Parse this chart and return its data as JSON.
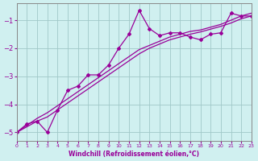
{
  "xlabel": "Windchill (Refroidissement éolien,°C)",
  "background_color": "#d0f0f0",
  "grid_color": "#a0c8c8",
  "line_color": "#990099",
  "x_ticks": [
    0,
    1,
    2,
    3,
    4,
    5,
    6,
    7,
    8,
    9,
    10,
    11,
    12,
    13,
    14,
    15,
    16,
    17,
    18,
    19,
    20,
    21,
    22,
    23
  ],
  "y_ticks": [
    -5,
    -4,
    -3,
    -2,
    -1
  ],
  "xlim": [
    0,
    23
  ],
  "ylim": [
    -5.3,
    -0.4
  ],
  "main_x": [
    0,
    1,
    2,
    3,
    4,
    5,
    6,
    7,
    8,
    9,
    10,
    11,
    12,
    13,
    14,
    15,
    16,
    17,
    18,
    19,
    20,
    21,
    22,
    23
  ],
  "main_y": [
    -5.0,
    -4.7,
    -4.6,
    -5.0,
    -4.2,
    -3.5,
    -3.35,
    -2.95,
    -2.95,
    -2.6,
    -2.0,
    -1.5,
    -0.65,
    -1.3,
    -1.55,
    -1.45,
    -1.45,
    -1.6,
    -1.7,
    -1.5,
    -1.45,
    -0.75,
    -0.85,
    -0.85
  ],
  "line2_x": [
    0,
    1,
    2,
    3,
    4,
    5,
    6,
    7,
    8,
    9,
    10,
    11,
    12,
    13,
    14,
    15,
    16,
    17,
    18,
    19,
    20,
    21,
    22,
    23
  ],
  "line2_y": [
    -5.0,
    -4.75,
    -4.5,
    -4.3,
    -4.05,
    -3.8,
    -3.55,
    -3.3,
    -3.05,
    -2.8,
    -2.55,
    -2.3,
    -2.05,
    -1.9,
    -1.75,
    -1.6,
    -1.5,
    -1.4,
    -1.35,
    -1.25,
    -1.15,
    -1.0,
    -0.85,
    -0.75
  ],
  "line3_x": [
    0,
    1,
    2,
    3,
    4,
    5,
    6,
    7,
    8,
    9,
    10,
    11,
    12,
    13,
    14,
    15,
    16,
    17,
    18,
    19,
    20,
    21,
    22,
    23
  ],
  "line3_y": [
    -5.0,
    -4.8,
    -4.6,
    -4.45,
    -4.2,
    -3.95,
    -3.7,
    -3.45,
    -3.2,
    -2.95,
    -2.7,
    -2.45,
    -2.2,
    -2.0,
    -1.85,
    -1.7,
    -1.6,
    -1.5,
    -1.42,
    -1.32,
    -1.22,
    -1.1,
    -0.95,
    -0.85
  ]
}
